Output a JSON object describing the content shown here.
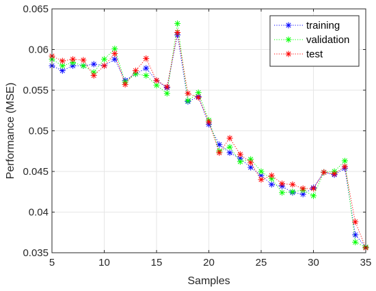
{
  "chart_data": {
    "type": "line",
    "title": "",
    "xlabel": "Samples",
    "ylabel": "Performance (MSE)",
    "xlim": [
      5,
      35
    ],
    "ylim": [
      0.035,
      0.065
    ],
    "xticks": [
      5,
      10,
      15,
      20,
      25,
      30,
      35
    ],
    "yticks": [
      0.035,
      0.04,
      0.045,
      0.05,
      0.055,
      0.06,
      0.065
    ],
    "xtick_labels": [
      "5",
      "10",
      "15",
      "20",
      "25",
      "30",
      "35"
    ],
    "ytick_labels": [
      "0.035",
      "0.04",
      "0.045",
      "0.05",
      "0.055",
      "0.06",
      "0.065"
    ],
    "grid": true,
    "legend_position": "top-right",
    "line_style": "dotted",
    "marker": "asterisk",
    "x": [
      5,
      6,
      7,
      8,
      9,
      10,
      11,
      12,
      13,
      14,
      15,
      16,
      17,
      18,
      19,
      20,
      21,
      22,
      23,
      24,
      25,
      26,
      27,
      28,
      29,
      30,
      31,
      32,
      33,
      34,
      35
    ],
    "series": [
      {
        "name": "training",
        "color": "#0000ff",
        "values": [
          0.058,
          0.0574,
          0.058,
          0.058,
          0.0582,
          0.058,
          0.0588,
          0.0562,
          0.057,
          0.0577,
          0.0562,
          0.0553,
          0.0618,
          0.0536,
          0.0542,
          0.0508,
          0.0483,
          0.0473,
          0.0466,
          0.0455,
          0.0445,
          0.0434,
          0.0432,
          0.0424,
          0.0422,
          0.043,
          0.0449,
          0.0446,
          0.0454,
          0.0372,
          0.0357
        ]
      },
      {
        "name": "validation",
        "color": "#00ff00",
        "values": [
          0.0588,
          0.058,
          0.0584,
          0.058,
          0.0572,
          0.0588,
          0.0601,
          0.056,
          0.057,
          0.0568,
          0.0556,
          0.0546,
          0.0632,
          0.0537,
          0.0547,
          0.0513,
          0.0475,
          0.048,
          0.0462,
          0.0465,
          0.045,
          0.0441,
          0.0424,
          0.0425,
          0.0427,
          0.042,
          0.0449,
          0.045,
          0.0463,
          0.0363,
          0.0357
        ]
      },
      {
        "name": "test",
        "color": "#ff0000",
        "values": [
          0.0592,
          0.0586,
          0.0588,
          0.0587,
          0.0568,
          0.058,
          0.0595,
          0.0557,
          0.0574,
          0.0589,
          0.0562,
          0.0554,
          0.0621,
          0.0546,
          0.0541,
          0.0511,
          0.0473,
          0.0491,
          0.0471,
          0.0461,
          0.044,
          0.0445,
          0.0435,
          0.0434,
          0.0429,
          0.0429,
          0.0449,
          0.0447,
          0.0456,
          0.0388,
          0.0356
        ]
      }
    ]
  }
}
